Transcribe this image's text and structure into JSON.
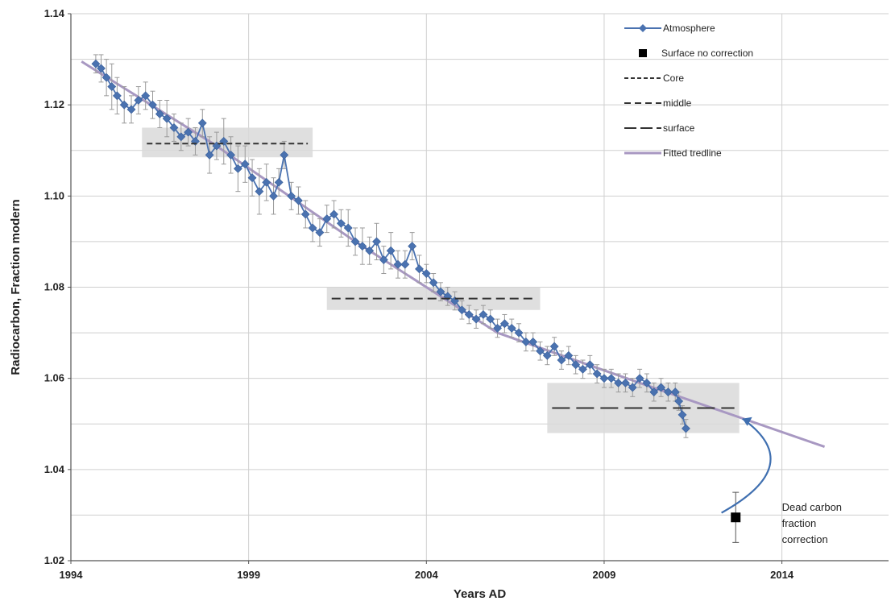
{
  "chart_data": {
    "type": "scatter",
    "title": "",
    "xlabel": "Years AD",
    "ylabel": "Radiocarbon, Fraction modern",
    "xlim": [
      1994,
      2017
    ],
    "ylim": [
      1.02,
      1.14
    ],
    "x_ticks": [
      1994,
      1999,
      2004,
      2009,
      2014
    ],
    "y_ticks": [
      1.02,
      1.04,
      1.06,
      1.08,
      1.1,
      1.12,
      1.14
    ],
    "y_minor_step": 0.01,
    "grid": "on",
    "legend_position": "top-right",
    "colors": {
      "atmosphere": "#4a72b0",
      "fitted": "#a898c2",
      "shading": "#d9d9d9",
      "errorbar": "#9a9a9a",
      "dashed": "#333333",
      "surface_point": "#000000",
      "arrow": "#3f6fb0"
    },
    "legend": [
      {
        "label": "Atmosphere",
        "style": "line-diamond",
        "color": "#4a72b0"
      },
      {
        "label": "Surface no correction",
        "style": "square",
        "color": "#000000"
      },
      {
        "label": "Core",
        "style": "short-dash",
        "color": "#333333"
      },
      {
        "label": "middle",
        "style": "medium-dash",
        "color": "#333333"
      },
      {
        "label": "surface",
        "style": "long-dash",
        "color": "#333333"
      },
      {
        "label": "Fitted tredline",
        "style": "solid",
        "color": "#a898c2"
      }
    ],
    "series": [
      {
        "name": "Atmosphere",
        "x": [
          1994.7,
          1994.85,
          1995.0,
          1995.15,
          1995.3,
          1995.5,
          1995.7,
          1995.9,
          1996.1,
          1996.3,
          1996.5,
          1996.7,
          1996.9,
          1997.1,
          1997.3,
          1997.5,
          1997.7,
          1997.9,
          1998.1,
          1998.3,
          1998.5,
          1998.7,
          1998.9,
          1999.1,
          1999.3,
          1999.5,
          1999.7,
          1999.85,
          2000.0,
          2000.2,
          2000.4,
          2000.6,
          2000.8,
          2001.0,
          2001.2,
          2001.4,
          2001.6,
          2001.8,
          2002.0,
          2002.2,
          2002.4,
          2002.6,
          2002.8,
          2003.0,
          2003.2,
          2003.4,
          2003.6,
          2003.8,
          2004.0,
          2004.2,
          2004.4,
          2004.6,
          2004.8,
          2005.0,
          2005.2,
          2005.4,
          2005.6,
          2005.8,
          2006.0,
          2006.2,
          2006.4,
          2006.6,
          2006.8,
          2007.0,
          2007.2,
          2007.4,
          2007.6,
          2007.8,
          2008.0,
          2008.2,
          2008.4,
          2008.6,
          2008.8,
          2009.0,
          2009.2,
          2009.4,
          2009.6,
          2009.8,
          2010.0,
          2010.2,
          2010.4,
          2010.6,
          2010.8,
          2011.0,
          2011.1,
          2011.2,
          2011.3
        ],
        "values": [
          1.129,
          1.128,
          1.126,
          1.124,
          1.122,
          1.12,
          1.119,
          1.121,
          1.122,
          1.12,
          1.118,
          1.117,
          1.115,
          1.113,
          1.114,
          1.112,
          1.116,
          1.109,
          1.111,
          1.112,
          1.109,
          1.106,
          1.107,
          1.104,
          1.101,
          1.103,
          1.1,
          1.103,
          1.109,
          1.1,
          1.099,
          1.096,
          1.093,
          1.092,
          1.095,
          1.096,
          1.094,
          1.093,
          1.09,
          1.089,
          1.088,
          1.09,
          1.086,
          1.088,
          1.085,
          1.085,
          1.089,
          1.084,
          1.083,
          1.081,
          1.079,
          1.078,
          1.077,
          1.075,
          1.074,
          1.073,
          1.074,
          1.073,
          1.071,
          1.072,
          1.071,
          1.07,
          1.068,
          1.068,
          1.066,
          1.065,
          1.067,
          1.064,
          1.065,
          1.063,
          1.062,
          1.063,
          1.061,
          1.06,
          1.06,
          1.059,
          1.059,
          1.058,
          1.06,
          1.059,
          1.057,
          1.058,
          1.057,
          1.057,
          1.055,
          1.052,
          1.049
        ],
        "error": [
          0.002,
          0.003,
          0.004,
          0.005,
          0.004,
          0.004,
          0.003,
          0.003,
          0.003,
          0.003,
          0.003,
          0.004,
          0.003,
          0.003,
          0.003,
          0.003,
          0.003,
          0.004,
          0.003,
          0.005,
          0.004,
          0.005,
          0.004,
          0.004,
          0.005,
          0.004,
          0.004,
          0.003,
          0.003,
          0.003,
          0.003,
          0.003,
          0.003,
          0.003,
          0.003,
          0.003,
          0.003,
          0.004,
          0.003,
          0.004,
          0.003,
          0.004,
          0.003,
          0.004,
          0.003,
          0.003,
          0.003,
          0.003,
          0.002,
          0.002,
          0.002,
          0.002,
          0.002,
          0.002,
          0.002,
          0.002,
          0.002,
          0.002,
          0.002,
          0.002,
          0.002,
          0.002,
          0.002,
          0.002,
          0.002,
          0.002,
          0.002,
          0.002,
          0.002,
          0.002,
          0.002,
          0.002,
          0.002,
          0.002,
          0.002,
          0.002,
          0.002,
          0.002,
          0.002,
          0.002,
          0.002,
          0.002,
          0.002,
          0.002,
          0.002,
          0.002,
          0.002
        ]
      },
      {
        "name": "Surface no correction",
        "x": [
          2012.7
        ],
        "values": [
          1.0295
        ],
        "error": [
          0.0055
        ]
      },
      {
        "name": "Core",
        "x": [
          1996.0,
          2000.8
        ],
        "values": [
          1.1115,
          1.1115
        ],
        "band": [
          1.1085,
          1.115
        ]
      },
      {
        "name": "middle",
        "x": [
          2001.2,
          2007.2
        ],
        "values": [
          1.0775,
          1.0775
        ],
        "band": [
          1.075,
          1.08
        ]
      },
      {
        "name": "surface",
        "x": [
          2007.4,
          2012.8
        ],
        "values": [
          1.0535,
          1.0535
        ],
        "band": [
          1.048,
          1.059
        ]
      },
      {
        "name": "Fitted tredline",
        "x": [
          1994.3,
          1998.0,
          2002.0,
          2006.0,
          2010.0,
          2015.2
        ],
        "values": [
          1.1295,
          1.1115,
          1.09,
          1.07,
          1.059,
          1.045
        ]
      }
    ],
    "annotations": [
      {
        "lines": [
          "Dead carbon",
          "fraction",
          "correction"
        ],
        "x": 2014.0,
        "y": 1.031
      },
      {
        "type": "arrow",
        "from": [
          2012.3,
          1.0305
        ],
        "to": [
          2012.8,
          1.0515
        ]
      }
    ]
  }
}
